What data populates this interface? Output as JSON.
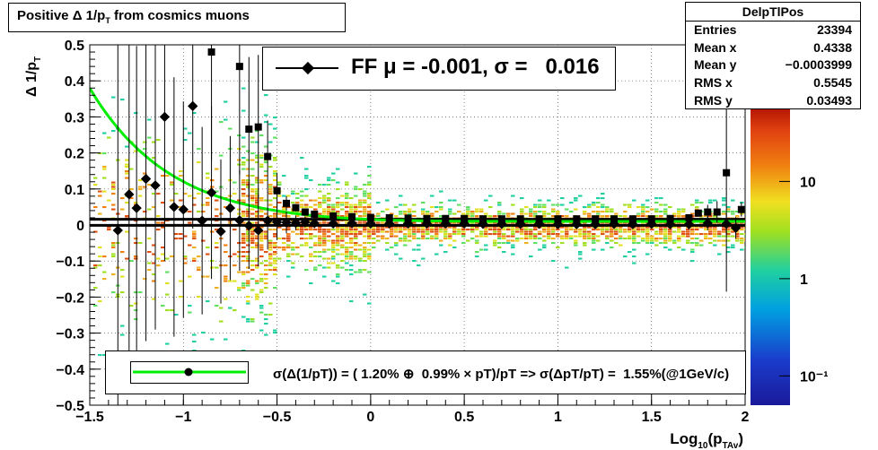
{
  "title": "Positive Δ 1/p",
  "title_sub": "T",
  "title_rest": " from cosmics muons",
  "stats": {
    "name": "DelpTlPos",
    "rows": [
      {
        "label": "Entries",
        "value": "23394"
      },
      {
        "label": "Mean x",
        "value": "0.4338"
      },
      {
        "label": "Mean y",
        "value": "−0.0003999"
      },
      {
        "label": "RMS x",
        "value": "0.5545"
      },
      {
        "label": "RMS y",
        "value": "0.03493"
      }
    ]
  },
  "legend_top": "FF μ = -0.001, σ =   0.016",
  "legend_bottom": "σ(Δ(1/pT)) = ( 1.20% ⊕  0.99% × pT)/pT => σ(ΔpT/pT) =  1.55%(@1GeV/c)",
  "colors": {
    "fit_curve": "#00ee00",
    "markers": "#000000",
    "palette_low": "#1a2ccc",
    "palette_high": "#c02000"
  },
  "chart_data": {
    "type": "heatmap",
    "title": "Positive Δ 1/pT from cosmics muons",
    "xlabel_main": "Log",
    "xlabel_sub": "10",
    "xlabel_paren": "(p",
    "xlabel_sub2": "TAv",
    "xlabel_end": ")",
    "ylabel_main": "Δ 1/p",
    "ylabel_sub": "T",
    "xlim": [
      -1.5,
      2
    ],
    "ylim": [
      -0.5,
      0.5
    ],
    "x_ticks": [
      -1.5,
      -1,
      -0.5,
      0,
      0.5,
      1,
      1.5,
      2
    ],
    "x_tick_labels": [
      "−1.5",
      "−1",
      "−0.5",
      "0",
      "0.5",
      "1",
      "1.5",
      "2"
    ],
    "y_ticks": [
      -0.5,
      -0.4,
      -0.3,
      -0.2,
      -0.1,
      0,
      0.1,
      0.2,
      0.3,
      0.4,
      0.5
    ],
    "y_tick_labels": [
      "−0.5",
      "−0.4",
      "−0.3",
      "−0.2",
      "−0.1",
      "0",
      "0.1",
      "0.2",
      "0.3",
      "0.4",
      "0.5"
    ],
    "grid": true,
    "z_scale": "log",
    "z_tick_labels": [
      "10",
      "1",
      "10⁻¹"
    ],
    "z_ticks": [
      10,
      1,
      0.1
    ],
    "z_range": [
      0.05,
      60
    ],
    "mean_points": {
      "x": [
        -1.35,
        -1.29,
        -1.25,
        -1.2,
        -1.15,
        -1.1,
        -1.05,
        -1.0,
        -0.95,
        -0.9,
        -0.85,
        -0.8,
        -0.75,
        -0.7,
        -0.65,
        -0.6,
        -0.55,
        -0.5,
        -0.45,
        -0.4,
        -0.35,
        -0.3,
        -0.2,
        -0.1,
        0.0,
        0.1,
        0.2,
        0.3,
        0.4,
        0.5,
        0.6,
        0.7,
        0.8,
        0.9,
        1.0,
        1.1,
        1.2,
        1.3,
        1.4,
        1.5,
        1.6,
        1.7,
        1.8,
        1.9,
        1.95
      ],
      "y": [
        -0.015,
        0.085,
        0.047,
        0.128,
        0.11,
        0.3,
        0.05,
        0.043,
        0.33,
        0.012,
        0.09,
        -0.018,
        0.047,
        0.013,
        -0.002,
        -0.015,
        0.012,
        0.008,
        0.007,
        0.006,
        0.008,
        0.005,
        0.004,
        0.005,
        0.004,
        0.004,
        0.004,
        0.004,
        0.004,
        0.004,
        0.003,
        0.003,
        0.003,
        0.003,
        0.002,
        0.002,
        0.002,
        0.003,
        0.002,
        0.003,
        0.002,
        0.002,
        0.005,
        0.003,
        -0.008
      ],
      "yerr": [
        0.52,
        0.5,
        0.45,
        0.45,
        0.4,
        0.4,
        0.36,
        0.3,
        0.34,
        0.26,
        0.24,
        0.2,
        0.2,
        0.14,
        0.12,
        0.1,
        0.08,
        0.05,
        0.03,
        0.02,
        0.015,
        0.012,
        0.01,
        0.008,
        0.008,
        0.008,
        0.008,
        0.008,
        0.008,
        0.008,
        0.008,
        0.008,
        0.008,
        0.008,
        0.008,
        0.008,
        0.008,
        0.01,
        0.01,
        0.012,
        0.012,
        0.015,
        0.02,
        0.03,
        0.03
      ]
    },
    "sigma_points": {
      "x": [
        -0.85,
        -0.7,
        -0.65,
        -0.6,
        -0.55,
        -0.5,
        -0.45,
        -0.4,
        -0.35,
        -0.3,
        -0.2,
        -0.1,
        0.0,
        0.1,
        0.2,
        0.3,
        0.4,
        0.5,
        0.6,
        0.7,
        0.8,
        0.9,
        1.0,
        1.1,
        1.2,
        1.3,
        1.4,
        1.5,
        1.6,
        1.7,
        1.75,
        1.8,
        1.85,
        1.9,
        1.98
      ],
      "y": [
        0.48,
        0.44,
        0.266,
        0.272,
        0.19,
        0.095,
        0.06,
        0.048,
        0.036,
        0.03,
        0.025,
        0.023,
        0.021,
        0.02,
        0.019,
        0.018,
        0.018,
        0.018,
        0.017,
        0.017,
        0.017,
        0.017,
        0.017,
        0.017,
        0.017,
        0.017,
        0.017,
        0.017,
        0.018,
        0.02,
        0.033,
        0.036,
        0.036,
        0.145,
        0.043
      ],
      "yerr": [
        0.3,
        0.3,
        0.2,
        0.2,
        0.1,
        0.05,
        0.02,
        0.01,
        0.006,
        0.004,
        0.003,
        0.003,
        0.003,
        0.003,
        0.003,
        0.003,
        0.003,
        0.003,
        0.003,
        0.003,
        0.003,
        0.003,
        0.003,
        0.003,
        0.003,
        0.003,
        0.003,
        0.003,
        0.003,
        0.004,
        0.008,
        0.02,
        0.03,
        0.33,
        0.02
      ]
    },
    "mean_fit": {
      "value": -0.001
    },
    "sigma_fit": {
      "value": 0.016
    },
    "resolution_fit": {
      "a_percent": 1.2,
      "b_percent": 0.99
    }
  }
}
